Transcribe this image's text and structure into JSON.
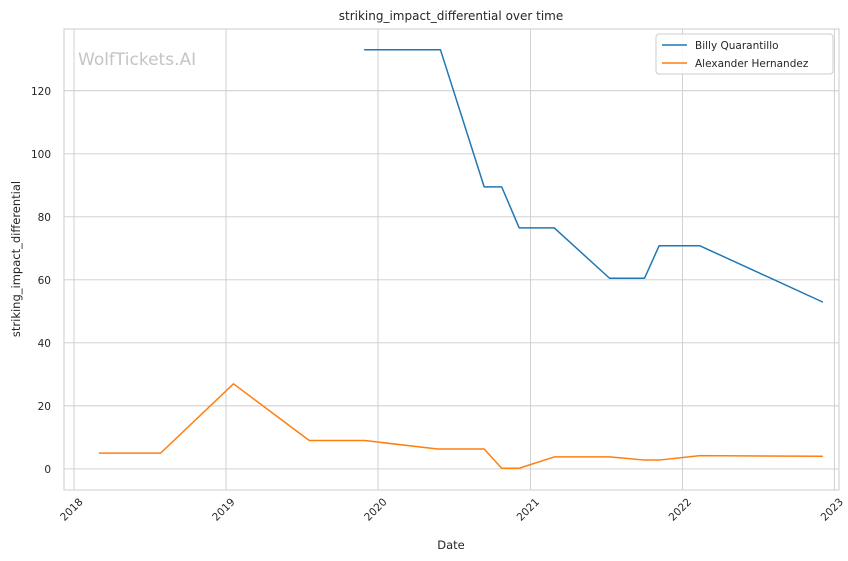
{
  "chart_data": {
    "type": "line",
    "title": "striking_impact_differential over time",
    "xlabel": "Date",
    "ylabel": "striking_impact_differential",
    "xlim": [
      "2017-12-08",
      "2023-01-12"
    ],
    "ylim": [
      -6.7,
      139.6
    ],
    "x_ticks": [
      "2018-01-01",
      "2019-01-01",
      "2020-01-01",
      "2021-01-01",
      "2022-01-01",
      "2023-01-01"
    ],
    "x_tick_labels": [
      "2018",
      "2019",
      "2020",
      "2021",
      "2022",
      "2023"
    ],
    "y_ticks": [
      0,
      20,
      40,
      60,
      80,
      100,
      120
    ],
    "grid": true,
    "legend_position": "top-right",
    "watermark": "WolfTickets.AI",
    "series": [
      {
        "name": "Billy Quarantillo",
        "color": "#1f77b4",
        "points": [
          {
            "x": "2019-11-30",
            "y": 133.0
          },
          {
            "x": "2020-05-30",
            "y": 133.0
          },
          {
            "x": "2020-09-12",
            "y": 89.5
          },
          {
            "x": "2020-10-24",
            "y": 89.5
          },
          {
            "x": "2020-12-05",
            "y": 76.5
          },
          {
            "x": "2021-02-27",
            "y": 76.5
          },
          {
            "x": "2021-07-10",
            "y": 60.5
          },
          {
            "x": "2021-10-02",
            "y": 60.5
          },
          {
            "x": "2021-11-06",
            "y": 70.8
          },
          {
            "x": "2022-02-12",
            "y": 70.8
          },
          {
            "x": "2022-12-03",
            "y": 53.0
          }
        ]
      },
      {
        "name": "Alexander Hernandez",
        "color": "#ff7f0e",
        "points": [
          {
            "x": "2018-03-03",
            "y": 5.0
          },
          {
            "x": "2018-07-28",
            "y": 5.0
          },
          {
            "x": "2019-01-19",
            "y": 27.0
          },
          {
            "x": "2019-07-20",
            "y": 9.0
          },
          {
            "x": "2019-11-30",
            "y": 9.0
          },
          {
            "x": "2020-05-23",
            "y": 6.3
          },
          {
            "x": "2020-09-12",
            "y": 6.3
          },
          {
            "x": "2020-10-24",
            "y": 0.2
          },
          {
            "x": "2020-12-05",
            "y": 0.2
          },
          {
            "x": "2021-02-27",
            "y": 3.8
          },
          {
            "x": "2021-07-10",
            "y": 3.8
          },
          {
            "x": "2021-10-02",
            "y": 2.8
          },
          {
            "x": "2021-11-06",
            "y": 2.8
          },
          {
            "x": "2022-02-12",
            "y": 4.2
          },
          {
            "x": "2022-12-03",
            "y": 4.0
          }
        ]
      }
    ]
  }
}
